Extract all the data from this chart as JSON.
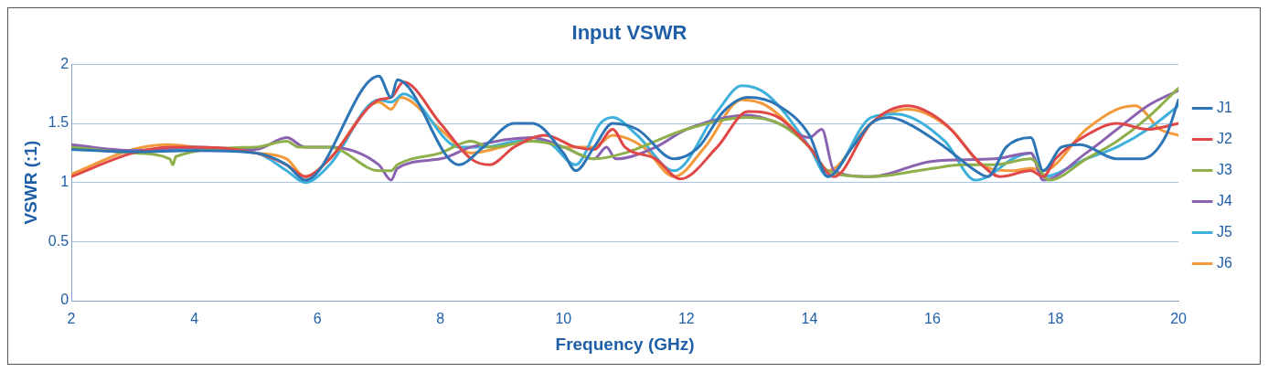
{
  "chart_data": {
    "type": "line",
    "title": "Input VSWR",
    "xlabel": "Frequency (GHz)",
    "ylabel": "VSWR (:1)",
    "xlim": [
      2,
      20
    ],
    "xticks": [
      2,
      4,
      6,
      8,
      10,
      12,
      14,
      16,
      18,
      20
    ],
    "ylim": [
      0,
      2
    ],
    "yticks": [
      0,
      0.5,
      1,
      1.5,
      2
    ],
    "grid": "y",
    "legend": "right",
    "marker": "none",
    "line_style": "solid",
    "series": [
      {
        "name": "J1",
        "color": "#2e75b6",
        "x": [
          2,
          3,
          4,
          5,
          5.5,
          5.8,
          7,
          7.2,
          7.3,
          8.3,
          8.7,
          9.2,
          9.5,
          10,
          10.2,
          10.5,
          10.8,
          11.2,
          11.8,
          12.2,
          12.6,
          13,
          13.5,
          14,
          14.3,
          14.7,
          15,
          15.3,
          15.6,
          16.2,
          16.7,
          16.9,
          17.2,
          17.6,
          17.8,
          18.1,
          18.4,
          19,
          19.4,
          19.8,
          20
        ],
        "values": [
          1.28,
          1.26,
          1.27,
          1.25,
          1.15,
          1.02,
          1.9,
          1.72,
          1.87,
          1.15,
          1.3,
          1.5,
          1.5,
          1.25,
          1.1,
          1.3,
          1.5,
          1.45,
          1.2,
          1.3,
          1.6,
          1.72,
          1.65,
          1.4,
          1.05,
          1.3,
          1.5,
          1.55,
          1.5,
          1.3,
          1.1,
          1.05,
          1.3,
          1.38,
          1.1,
          1.3,
          1.32,
          1.2,
          1.2,
          1.4,
          1.7
        ]
      },
      {
        "name": "J2",
        "color": "#e04848",
        "x": [
          2,
          3,
          3.6,
          4,
          5,
          5.5,
          5.8,
          6.2,
          7,
          7.2,
          7.4,
          8,
          8.5,
          8.8,
          9.2,
          9.7,
          10.2,
          10.5,
          10.8,
          11,
          11.5,
          11.9,
          12.5,
          13,
          13.5,
          14,
          14.4,
          15,
          15.6,
          16.2,
          16.8,
          17.1,
          17.6,
          17.8,
          18,
          18.5,
          19,
          19.5,
          20
        ],
        "values": [
          1.05,
          1.25,
          1.3,
          1.3,
          1.25,
          1.15,
          1.05,
          1.2,
          1.7,
          1.72,
          1.85,
          1.5,
          1.2,
          1.15,
          1.3,
          1.4,
          1.3,
          1.28,
          1.45,
          1.3,
          1.2,
          1.03,
          1.3,
          1.6,
          1.55,
          1.3,
          1.05,
          1.5,
          1.65,
          1.5,
          1.15,
          1.05,
          1.1,
          1.05,
          1.2,
          1.4,
          1.5,
          1.45,
          1.5
        ]
      },
      {
        "name": "J3",
        "color": "#8db04a",
        "x": [
          2,
          3,
          3.6,
          3.65,
          3.7,
          5,
          5.5,
          5.7,
          6.2,
          7,
          7.2,
          7.3,
          8,
          8.5,
          8.8,
          9.5,
          10,
          10.5,
          11,
          12,
          13,
          13.5,
          14,
          14.3,
          15,
          16,
          16.5,
          17,
          17.6,
          17.9,
          18.5,
          19,
          19.5,
          20
        ],
        "values": [
          1.3,
          1.25,
          1.2,
          1.15,
          1.22,
          1.3,
          1.35,
          1.3,
          1.3,
          1.1,
          1.1,
          1.15,
          1.25,
          1.35,
          1.3,
          1.35,
          1.3,
          1.2,
          1.25,
          1.45,
          1.55,
          1.5,
          1.3,
          1.1,
          1.05,
          1.12,
          1.15,
          1.15,
          1.2,
          1.02,
          1.2,
          1.35,
          1.55,
          1.8
        ]
      },
      {
        "name": "J4",
        "color": "#8a62b0",
        "x": [
          2,
          3,
          4,
          5,
          5.5,
          5.8,
          6.2,
          7,
          7.2,
          7.3,
          8,
          8.5,
          9.5,
          10,
          10.5,
          10.7,
          10.85,
          11.5,
          12,
          13,
          13.5,
          14,
          14.2,
          14.4,
          15,
          16,
          17,
          17.6,
          17.8,
          18.5,
          19,
          19.5,
          20
        ],
        "values": [
          1.32,
          1.27,
          1.3,
          1.28,
          1.38,
          1.3,
          1.3,
          1.15,
          1.02,
          1.12,
          1.2,
          1.3,
          1.38,
          1.3,
          1.2,
          1.3,
          1.2,
          1.3,
          1.45,
          1.57,
          1.5,
          1.38,
          1.45,
          1.1,
          1.05,
          1.18,
          1.2,
          1.25,
          1.02,
          1.25,
          1.45,
          1.65,
          1.78
        ]
      },
      {
        "name": "J5",
        "color": "#3eb0dc",
        "x": [
          2,
          3,
          4,
          5,
          5.5,
          5.8,
          6.2,
          7,
          7.2,
          7.4,
          8.3,
          8.7,
          9.3,
          9.7,
          10.2,
          10.6,
          10.8,
          11.2,
          11.8,
          12.5,
          12.9,
          13.3,
          14,
          14.3,
          15,
          15.4,
          16.2,
          16.7,
          16.9,
          17.3,
          17.6,
          17.8,
          18.5,
          19,
          19.5,
          20
        ],
        "values": [
          1.3,
          1.27,
          1.28,
          1.25,
          1.1,
          1.0,
          1.15,
          1.7,
          1.68,
          1.75,
          1.3,
          1.3,
          1.35,
          1.35,
          1.15,
          1.5,
          1.55,
          1.4,
          1.1,
          1.6,
          1.82,
          1.75,
          1.3,
          1.05,
          1.55,
          1.58,
          1.35,
          1.02,
          1.05,
          1.2,
          1.25,
          1.05,
          1.2,
          1.3,
          1.45,
          1.65
        ]
      },
      {
        "name": "J6",
        "color": "#f39a3c",
        "x": [
          2,
          3,
          3.6,
          4,
          5,
          5.5,
          5.8,
          6.2,
          7,
          7.2,
          7.35,
          8,
          8.5,
          9,
          9.5,
          10,
          10.5,
          10.8,
          11.3,
          11.8,
          12.3,
          12.9,
          13.3,
          14,
          14.3,
          15,
          15.6,
          16.3,
          16.8,
          17.3,
          17.6,
          17.8,
          18.5,
          19,
          19.3,
          19.7,
          20
        ],
        "values": [
          1.07,
          1.28,
          1.32,
          1.3,
          1.25,
          1.2,
          1.05,
          1.2,
          1.68,
          1.62,
          1.72,
          1.45,
          1.25,
          1.3,
          1.38,
          1.3,
          1.3,
          1.4,
          1.3,
          1.05,
          1.3,
          1.7,
          1.65,
          1.3,
          1.1,
          1.5,
          1.62,
          1.45,
          1.15,
          1.1,
          1.12,
          1.1,
          1.45,
          1.62,
          1.65,
          1.45,
          1.4
        ]
      }
    ]
  }
}
